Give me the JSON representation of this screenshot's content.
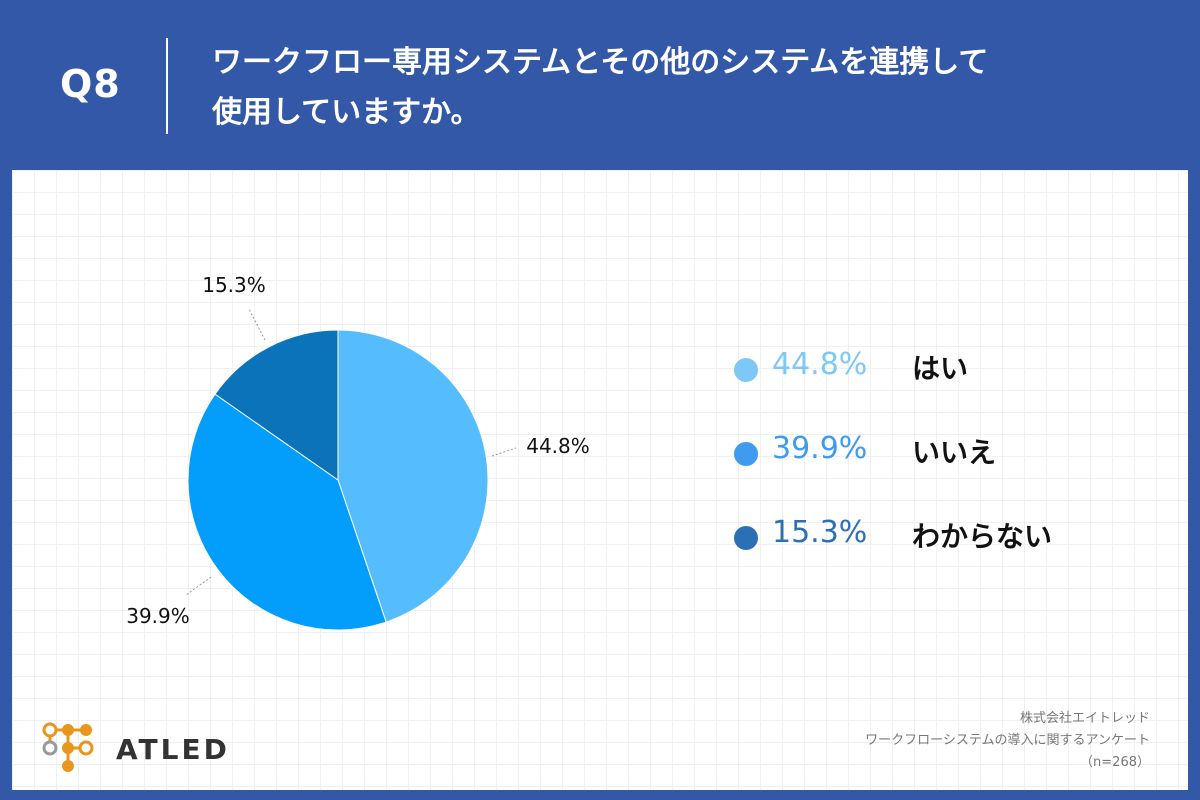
{
  "header": {
    "qnum": "Q8",
    "question_line1": "ワークフロー専用システムとその他のシステムを連携して",
    "question_line2": "使用していますか。"
  },
  "chart_data": {
    "type": "pie",
    "title": "ワークフロー専用システムとその他のシステムを連携して使用していますか。",
    "slices": [
      {
        "label": "はい",
        "value": 44.8,
        "value_label": "44.8%",
        "color": "#55bdfd",
        "legend_color": "#7ec8f5"
      },
      {
        "label": "いいえ",
        "value": 39.9,
        "value_label": "39.9%",
        "color": "#039dfc",
        "legend_color": "#3e9bee"
      },
      {
        "label": "わからない",
        "value": 15.3,
        "value_label": "15.3%",
        "color": "#0a73b9",
        "legend_color": "#2d6fb4"
      }
    ],
    "start_angle": "12 o'clock",
    "direction": "clockwise"
  },
  "logo": {
    "text": "ATLED"
  },
  "source": {
    "company": "株式会社エイトレッド",
    "survey": "ワークフローシステムの導入に関するアンケート",
    "sample": "（n=268）"
  }
}
